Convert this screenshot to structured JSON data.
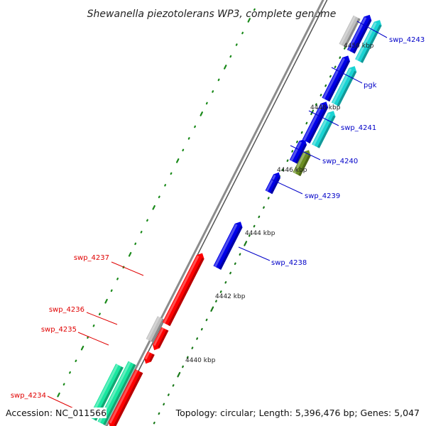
{
  "title": "Shewanella piezotolerans WP3, complete genome",
  "footer": {
    "accession": "Accession: NC_011566",
    "topology": "Topology: circular; Length: 5,396,476 bp; Genes: 5,047"
  },
  "colors": {
    "backbone": "#8c8c8c",
    "tick": "#1a7a1a",
    "dot": "#1a8a1a",
    "forward_gene_label": "#0000c8",
    "reverse_gene_label": "#e00000",
    "blue_gene": "#0000e6",
    "cyan_gene": "#19d3d3",
    "olive_gene": "#6b8e23",
    "red_gene": "#ff0000",
    "gray_gene": "#c0c0c0",
    "mint_gene": "#19e6a0"
  },
  "scale_marks": [
    {
      "label": "4440 kbp",
      "kbp": 4440
    },
    {
      "label": "4442 kbp",
      "kbp": 4442
    },
    {
      "label": "4444 kbp",
      "kbp": 4444
    },
    {
      "label": "4446 kbp",
      "kbp": 4446
    },
    {
      "label": "4448 kbp",
      "kbp": 4448
    },
    {
      "label": "4450 kbp",
      "kbp": 4450
    }
  ],
  "gene_labels": [
    {
      "name": "swp_4243",
      "strand": "forward"
    },
    {
      "name": "pgk",
      "strand": "forward"
    },
    {
      "name": "swp_4241",
      "strand": "forward"
    },
    {
      "name": "swp_4240",
      "strand": "forward"
    },
    {
      "name": "swp_4239",
      "strand": "forward"
    },
    {
      "name": "swp_4238",
      "strand": "forward"
    },
    {
      "name": "swp_4237",
      "strand": "reverse"
    },
    {
      "name": "swp_4236",
      "strand": "reverse"
    },
    {
      "name": "swp_4235",
      "strand": "reverse"
    },
    {
      "name": "swp_4234",
      "strand": "reverse"
    }
  ]
}
